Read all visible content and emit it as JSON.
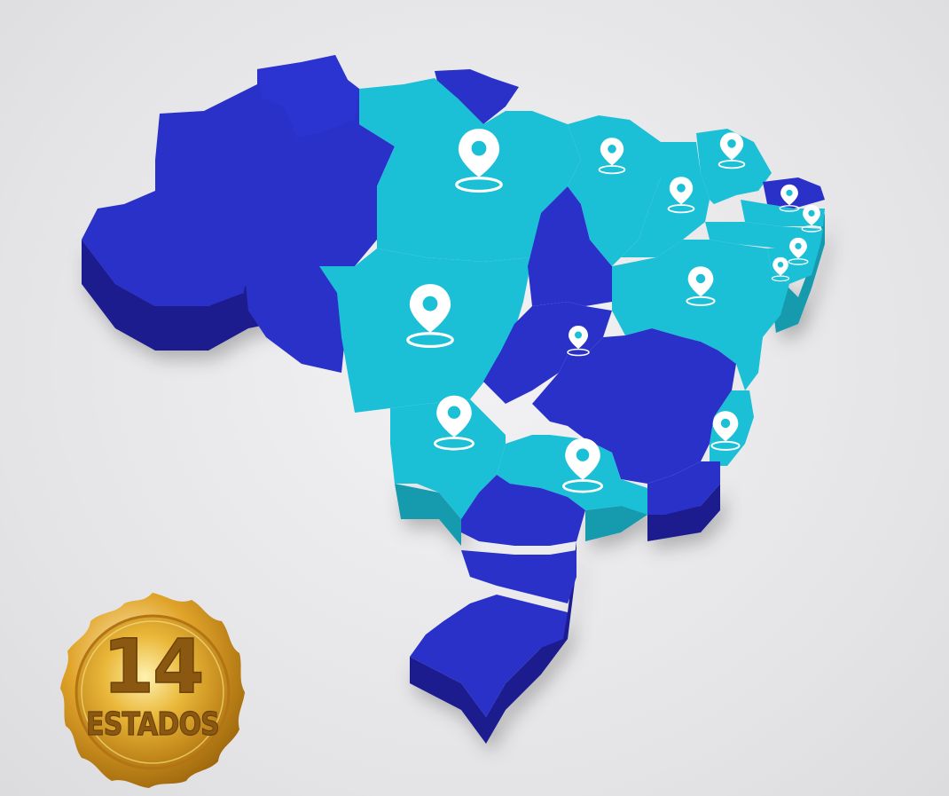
{
  "seal": {
    "number": "14",
    "word": "ESTADOS"
  },
  "colors": {
    "dark_blue": "#2a31c9",
    "dark_blue_side": "#1a1f8e",
    "light_blue": "#1cc0d6",
    "light_blue_side": "#139aae",
    "pin": "#ffffff",
    "gold": "#e8b22c"
  },
  "icons": {
    "pin": "map-pin-icon",
    "seal": "gold-seal-badge"
  }
}
